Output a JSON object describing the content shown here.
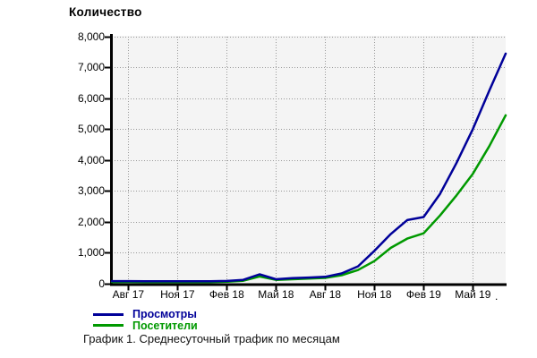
{
  "title": "Количество",
  "caption": "График 1. Среднесуточный трафик по месяцам",
  "legend": [
    {
      "label": "Просмотры",
      "color": "#000099"
    },
    {
      "label": "Посетители",
      "color": "#009900"
    }
  ],
  "axis": {
    "partial_right_label_fragment": "."
  },
  "colors": {
    "plot_background": "#f4f4f4",
    "gridline": "#999999",
    "axis_line": "#000000",
    "text": "#000000"
  },
  "chart_data": {
    "type": "line",
    "title": "Количество",
    "xlabel": "",
    "ylabel": "",
    "ylim": [
      0,
      8000
    ],
    "y_tick_step": 1000,
    "y_tick_labels": [
      "0",
      "1,000",
      "2,000",
      "3,000",
      "4,000",
      "5,000",
      "6,000",
      "7,000",
      "8,000"
    ],
    "x_tick_labels": [
      "Авг 17",
      "Ноя 17",
      "Фев 18",
      "Май 18",
      "Авг 18",
      "Ноя 18",
      "Фев 19",
      "Май 19"
    ],
    "x_tick_indices": [
      1,
      4,
      7,
      10,
      13,
      16,
      19,
      22
    ],
    "grid": "dotted",
    "legend_position": "bottom-left",
    "series": [
      {
        "name": "Просмотры",
        "color": "#000099",
        "values": [
          70,
          70,
          65,
          65,
          65,
          65,
          65,
          75,
          110,
          290,
          130,
          165,
          185,
          210,
          320,
          550,
          1050,
          1600,
          2050,
          2150,
          2900,
          3900,
          5000,
          6250,
          7450
        ]
      },
      {
        "name": "Посетители",
        "color": "#009900",
        "values": [
          40,
          45,
          40,
          40,
          40,
          40,
          40,
          50,
          80,
          220,
          110,
          130,
          150,
          175,
          260,
          430,
          720,
          1150,
          1450,
          1620,
          2200,
          2850,
          3550,
          4450,
          5450
        ]
      }
    ]
  }
}
